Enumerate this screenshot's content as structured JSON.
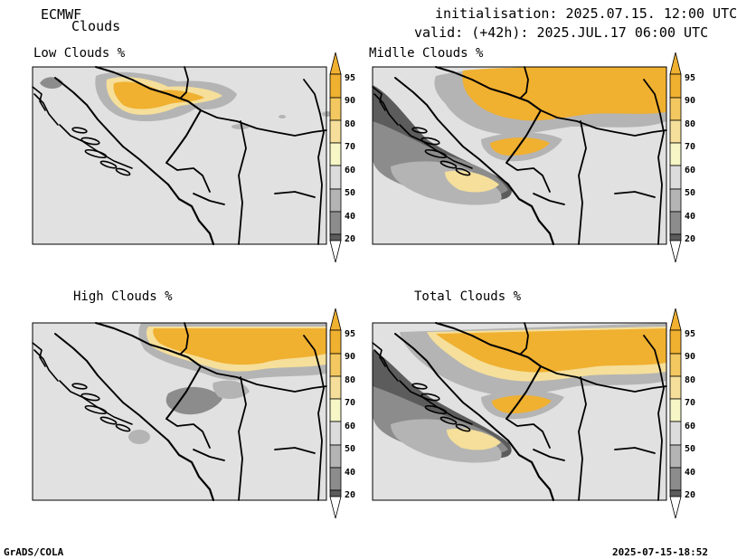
{
  "header": {
    "model": "ECMWF",
    "product": "Clouds",
    "init": "initialisation: 2025.07.15. 12:00 UTC",
    "valid": "valid: (+42h): 2025.JUL.17 06:00 UTC"
  },
  "panels": [
    {
      "title": "Low Clouds %"
    },
    {
      "title": "Midlle Clouds %"
    },
    {
      "title": "High Clouds %"
    },
    {
      "title": "Total Clouds %"
    }
  ],
  "colorbar": {
    "levels": [
      "95",
      "90",
      "80",
      "70",
      "60",
      "50",
      "40",
      "20"
    ],
    "colors": [
      "#f0b030",
      "#f3c860",
      "#f5df9a",
      "#f6f6c6",
      "#dcdcdc",
      "#b4b4b4",
      "#8c8c8c",
      "#5c5c5c",
      "#ffffff"
    ]
  },
  "footer": {
    "left": "GrADS/COLA",
    "right": "2025-07-15-18:52"
  }
}
